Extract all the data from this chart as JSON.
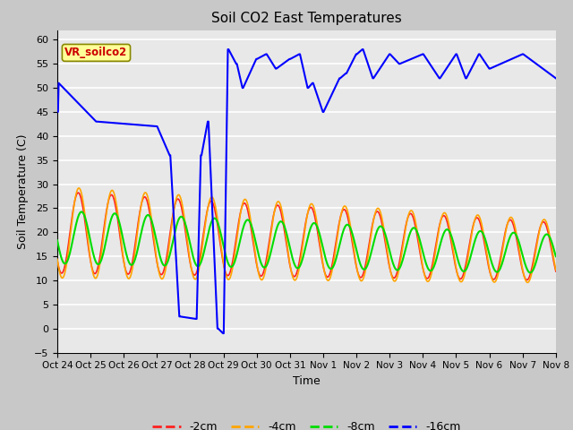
{
  "title": "Soil CO2 East Temperatures",
  "xlabel": "Time",
  "ylabel": "Soil Temperature (C)",
  "ylim": [
    -5,
    62
  ],
  "yticks": [
    -5,
    0,
    5,
    10,
    15,
    20,
    25,
    30,
    35,
    40,
    45,
    50,
    55,
    60
  ],
  "colors": {
    "neg2cm": "#ff2020",
    "neg4cm": "#ffa500",
    "neg8cm": "#00dd00",
    "neg16cm": "#0000ff"
  },
  "legend_labels": [
    "-2cm",
    "-4cm",
    "-8cm",
    "-16cm"
  ],
  "annotation_text": "VR_soilco2",
  "annotation_bg": "#ffff99",
  "annotation_fg": "#cc0000",
  "fig_bg": "#c8c8c8",
  "plot_bg": "#e8e8e8",
  "num_days": 15,
  "x_tick_labels": [
    "Oct 24",
    "Oct 25",
    "Oct 26",
    "Oct 27",
    "Oct 28",
    "Oct 29",
    "Oct 30",
    "Oct 31",
    "Nov 1",
    "Nov 2",
    "Nov 3",
    "Nov 4",
    "Nov 5",
    "Nov 6",
    "Nov 7",
    "Nov 8"
  ]
}
